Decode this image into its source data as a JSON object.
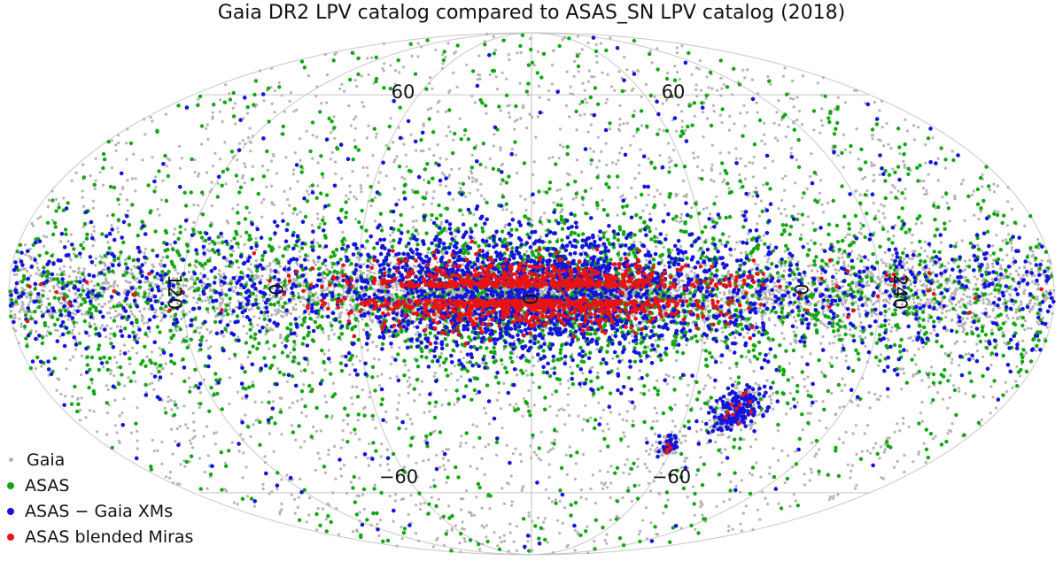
{
  "chart_data": {
    "type": "scatter",
    "projection": "Mollweide (all-sky)",
    "title": "Gaia DR2 LPV catalog compared to ASAS_SN LPV catalog (2018)",
    "grid_labels": {
      "latitude": [
        "60",
        "60",
        "−60",
        "−60"
      ],
      "longitude": [
        "120",
        "0",
        "0",
        "0",
        "240"
      ]
    },
    "legend_position": "bottom-left",
    "series": [
      {
        "name": "Gaia",
        "color": "#b4b4b4"
      },
      {
        "name": "ASAS",
        "color": "#12a612"
      },
      {
        "name": "ASAS − Gaia XMs",
        "color": "#1414dc"
      },
      {
        "name": "ASAS blended Miras",
        "color": "#e81414"
      }
    ],
    "features": [
      {
        "label": "LMC",
        "lon_deg": 280,
        "lat_deg": -33
      },
      {
        "label": "SMC",
        "lon_deg": 302,
        "lat_deg": -44
      }
    ],
    "grid": true
  }
}
